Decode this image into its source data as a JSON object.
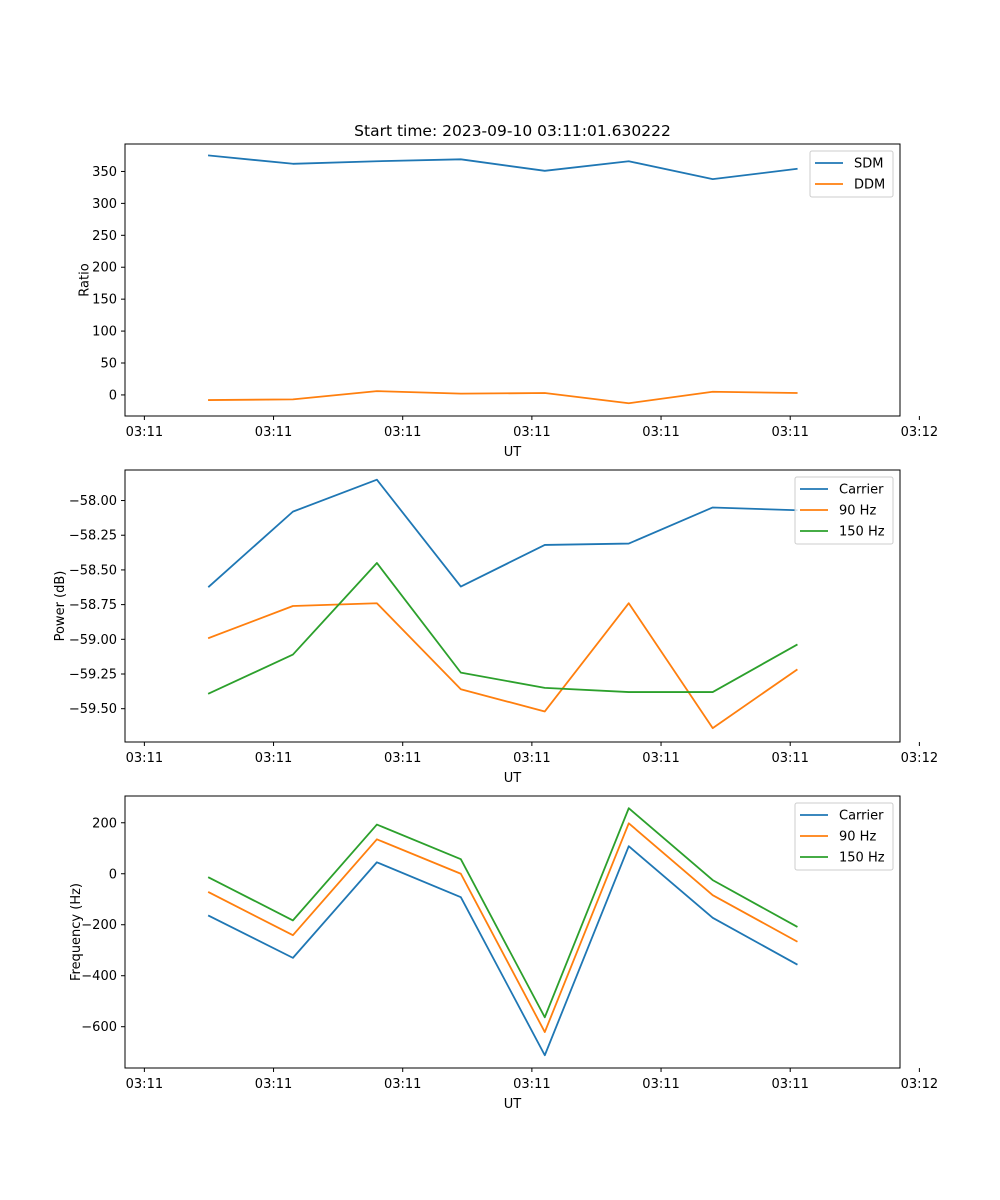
{
  "chart_data": [
    {
      "type": "line",
      "title": "Start time: 2023-09-10 03:11:01.630222",
      "xlabel": "UT",
      "ylabel": "Ratio",
      "xlim": [
        -0.15,
        5.85
      ],
      "x_ticks": [
        0,
        1,
        2,
        3,
        4,
        5,
        6
      ],
      "x_tick_labels": [
        "03:11",
        "03:11",
        "03:11",
        "03:11",
        "03:11",
        "03:11",
        "03:12"
      ],
      "ylim": [
        -33,
        393
      ],
      "y_ticks": [
        0,
        50,
        100,
        150,
        200,
        250,
        300,
        350
      ],
      "y_tick_labels": [
        "0",
        "50",
        "100",
        "150",
        "200",
        "250",
        "300",
        "350"
      ],
      "x": [
        0.5,
        1.15,
        1.8,
        2.45,
        3.1,
        3.75,
        4.4,
        5.05
      ],
      "series": [
        {
          "name": "SDM",
          "color": "#1f77b4",
          "values": [
            375,
            362,
            366,
            369,
            351,
            366,
            338,
            354
          ]
        },
        {
          "name": "DDM",
          "color": "#ff7f0e",
          "values": [
            -8,
            -7,
            6,
            2,
            3,
            -13,
            5,
            3
          ]
        }
      ]
    },
    {
      "type": "line",
      "title": "",
      "xlabel": "UT",
      "ylabel": "Power (dB)",
      "xlim": [
        -0.15,
        5.85
      ],
      "x_ticks": [
        0,
        1,
        2,
        3,
        4,
        5,
        6
      ],
      "x_tick_labels": [
        "03:11",
        "03:11",
        "03:11",
        "03:11",
        "03:11",
        "03:11",
        "03:12"
      ],
      "ylim": [
        -59.74,
        -57.78
      ],
      "y_ticks": [
        -58.0,
        -58.25,
        -58.5,
        -58.75,
        -59.0,
        -59.25,
        -59.5
      ],
      "y_tick_labels": [
        "−58.00",
        "−58.25",
        "−58.50",
        "−58.75",
        "−59.00",
        "−59.25",
        "−59.50"
      ],
      "x": [
        0.5,
        1.15,
        1.8,
        2.45,
        3.1,
        3.75,
        4.4,
        5.05
      ],
      "series": [
        {
          "name": "Carrier",
          "color": "#1f77b4",
          "values": [
            -58.62,
            -58.08,
            -57.85,
            -58.62,
            -58.32,
            -58.31,
            -58.05,
            -58.07
          ]
        },
        {
          "name": "90 Hz",
          "color": "#ff7f0e",
          "values": [
            -58.99,
            -58.76,
            -58.74,
            -59.36,
            -59.52,
            -58.74,
            -59.64,
            -59.22
          ]
        },
        {
          "name": "150 Hz",
          "color": "#2ca02c",
          "values": [
            -59.39,
            -59.11,
            -58.45,
            -59.24,
            -59.35,
            -59.38,
            -59.38,
            -59.04
          ]
        }
      ]
    },
    {
      "type": "line",
      "title": "",
      "xlabel": "UT",
      "ylabel": "Frequency (Hz)",
      "xlim": [
        -0.15,
        5.85
      ],
      "x_ticks": [
        0,
        1,
        2,
        3,
        4,
        5,
        6
      ],
      "x_tick_labels": [
        "03:11",
        "03:11",
        "03:11",
        "03:11",
        "03:11",
        "03:11",
        "03:12"
      ],
      "ylim": [
        -762,
        305
      ],
      "y_ticks": [
        200,
        0,
        -200,
        -400,
        -600
      ],
      "y_tick_labels": [
        "200",
        "0",
        "−200",
        "−400",
        "−600"
      ],
      "x": [
        0.5,
        1.15,
        1.8,
        2.45,
        3.1,
        3.75,
        4.4,
        5.05
      ],
      "series": [
        {
          "name": "Carrier",
          "color": "#1f77b4",
          "values": [
            -165,
            -330,
            45,
            -92,
            -712,
            108,
            -173,
            -355
          ]
        },
        {
          "name": "90 Hz",
          "color": "#ff7f0e",
          "values": [
            -73,
            -241,
            135,
            0,
            -621,
            198,
            -84,
            -265
          ]
        },
        {
          "name": "150 Hz",
          "color": "#2ca02c",
          "values": [
            -15,
            -183,
            193,
            57,
            -563,
            257,
            -25,
            -207
          ]
        }
      ]
    }
  ]
}
